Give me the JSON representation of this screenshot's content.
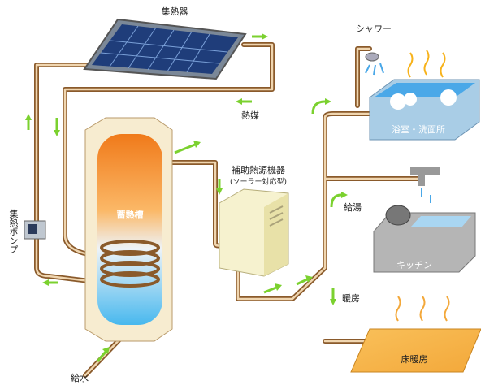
{
  "labels": {
    "collector": "集熱器",
    "heat_medium": "熱媒",
    "pump": "集熱ポンプ",
    "tank": "蓄熱槽",
    "aux_heater": "補助熱源機器",
    "aux_heater_note": "(ソーラー対応型)",
    "shower": "シャワー",
    "bathroom": "浴室・洗面所",
    "hot_water": "給湯",
    "kitchen": "キッチン",
    "heating": "暖房",
    "floor_heating": "床暖房",
    "water_supply": "給水"
  }
}
